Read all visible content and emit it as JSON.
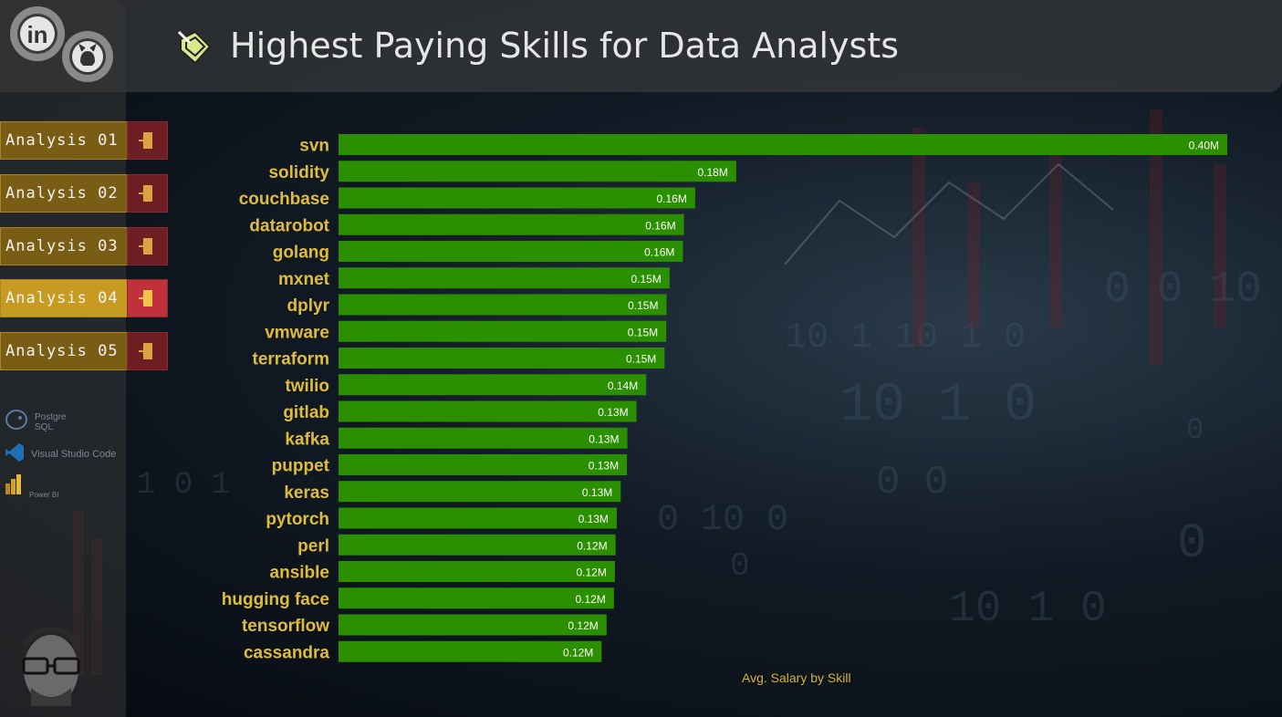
{
  "header": {
    "title": "Highest Paying Skills for Data Analysts"
  },
  "social": {
    "icons": [
      "linkedin-icon",
      "github-icon"
    ]
  },
  "nav": {
    "items": [
      {
        "label": "Analysis 01",
        "active": false
      },
      {
        "label": "Analysis 02",
        "active": false
      },
      {
        "label": "Analysis 03",
        "active": false
      },
      {
        "label": "Analysis 04",
        "active": true
      },
      {
        "label": "Analysis 05",
        "active": false
      }
    ]
  },
  "tools": {
    "postgres": "Postgre SQL",
    "vscode": "Visual Studio Code",
    "powerbi": "Power BI"
  },
  "colors": {
    "bar": "#2b9000",
    "label": "#e0bc3c",
    "nav_button": "#7a5d14",
    "nav_button_active": "#c79a22",
    "nav_icon": "#6e1e22",
    "nav_icon_active": "#c1313c"
  },
  "chart_data": {
    "type": "bar",
    "orientation": "horizontal",
    "categories": [
      "svn",
      "solidity",
      "couchbase",
      "datarobot",
      "golang",
      "mxnet",
      "dplyr",
      "vmware",
      "terraform",
      "twilio",
      "gitlab",
      "kafka",
      "puppet",
      "keras",
      "pytorch",
      "perl",
      "ansible",
      "hugging face",
      "tensorflow",
      "cassandra"
    ],
    "values": [
      400000,
      179000,
      160515,
      155486,
      155000,
      149000,
      147633,
      147500,
      146734,
      138500,
      134126,
      129999,
      129820,
      127013,
      125226,
      124686,
      124370,
      123950,
      120647,
      118407
    ],
    "data_labels": [
      "0.40M",
      "0.18M",
      "0.16M",
      "0.16M",
      "0.16M",
      "0.15M",
      "0.15M",
      "0.15M",
      "0.15M",
      "0.14M",
      "0.13M",
      "0.13M",
      "0.13M",
      "0.13M",
      "0.13M",
      "0.12M",
      "0.12M",
      "0.12M",
      "0.12M",
      "0.12M"
    ],
    "xlabel": "Avg. Salary by Skill",
    "ylabel": ""
  }
}
